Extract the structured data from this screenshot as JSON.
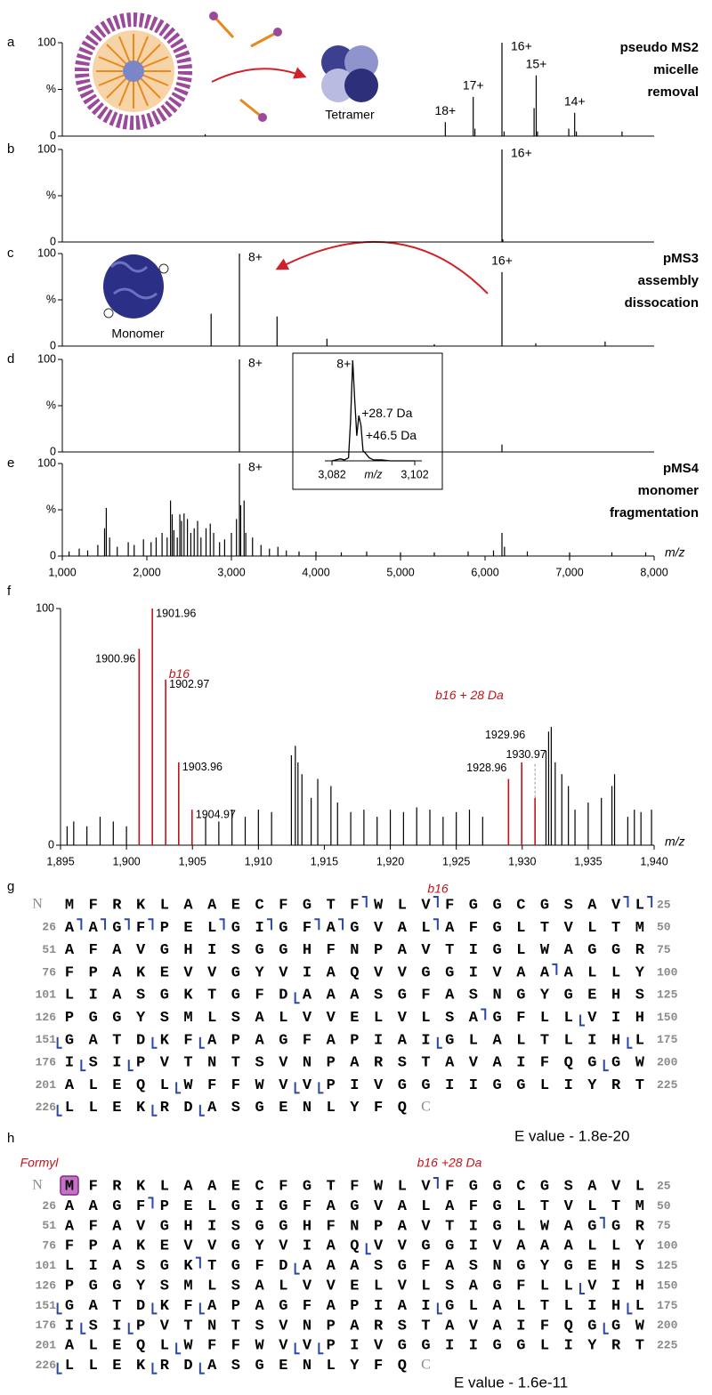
{
  "chart_data": [
    {
      "type": "spectrum",
      "panel": "a",
      "xlim": [
        1000,
        8000
      ],
      "ylim": [
        0,
        100
      ],
      "yticks": [
        0,
        {
          "value": 50,
          "label": "%"
        },
        100
      ],
      "color": "#000000",
      "x": [
        2690,
        5530,
        5860,
        5880,
        6200,
        6225,
        6580,
        6605,
        6620,
        6990,
        7060,
        7080,
        7620
      ],
      "values": [
        2,
        15,
        42,
        8,
        100,
        5,
        30,
        65,
        5,
        8,
        25,
        5,
        5
      ],
      "annotations": [
        {
          "text": "18+",
          "x": 5530,
          "y": 15
        },
        {
          "text": "17+",
          "x": 5860,
          "y": 42
        },
        {
          "text": "16+",
          "x": 6200,
          "y": 100
        },
        {
          "text": "15+",
          "x": 6605,
          "y": 65
        },
        {
          "text": "14+",
          "x": 7060,
          "y": 25
        }
      ],
      "title_lines": [
        "pseudo MS2",
        "micelle",
        "removal"
      ],
      "image_label": "Tetramer"
    },
    {
      "type": "spectrum",
      "panel": "b",
      "xlim": [
        1000,
        8000
      ],
      "ylim": [
        0,
        100
      ],
      "yticks": [
        0,
        {
          "value": 50,
          "label": "%"
        },
        100
      ],
      "color": "#000000",
      "x": [
        6200,
        6210
      ],
      "values": [
        100,
        3
      ],
      "annotations": [
        {
          "text": "16+",
          "x": 6200,
          "y": 100
        }
      ]
    },
    {
      "type": "spectrum",
      "panel": "c",
      "xlim": [
        1000,
        8000
      ],
      "ylim": [
        0,
        100
      ],
      "yticks": [
        0,
        {
          "value": 50,
          "label": "%"
        },
        100
      ],
      "color": "#000000",
      "x": [
        2760,
        3095,
        3540,
        4130,
        5400,
        6200,
        6600,
        7420
      ],
      "values": [
        35,
        100,
        32,
        8,
        2,
        80,
        3,
        5
      ],
      "annotations": [
        {
          "text": "8+",
          "x": 3095,
          "y": 100
        },
        {
          "text": "16+",
          "x": 6200,
          "y": 80
        }
      ],
      "title_lines": [
        "pMS3",
        "assembly",
        "dissocation"
      ],
      "image_label": "Monomer"
    },
    {
      "type": "spectrum",
      "panel": "d",
      "xlim": [
        1000,
        8000
      ],
      "ylim": [
        0,
        100
      ],
      "yticks": [
        0,
        {
          "value": 50,
          "label": "%"
        },
        100
      ],
      "color": "#000000",
      "x": [
        3095,
        6200
      ],
      "values": [
        100,
        8
      ],
      "annotations": [
        {
          "text": "8+",
          "x": 3095,
          "y": 100
        }
      ]
    },
    {
      "type": "spectrum",
      "panel": "e",
      "xlim": [
        1000,
        8000
      ],
      "ylim": [
        0,
        100
      ],
      "yticks": [
        0,
        {
          "value": 50,
          "label": "%"
        },
        100
      ],
      "color": "#000000",
      "xticks": [
        {
          "value": 1000,
          "label": "1,000"
        },
        {
          "value": 2000,
          "label": "2,000"
        },
        {
          "value": 3000,
          "label": "3,000"
        },
        {
          "value": 4000,
          "label": "4,000"
        },
        {
          "value": 5000,
          "label": "5,000"
        },
        {
          "value": 6000,
          "label": "6,000"
        },
        {
          "value": 7000,
          "label": "7,000"
        },
        {
          "value": 8000,
          "label": "8,000"
        }
      ],
      "xlabel": "m/z",
      "x": [
        1080,
        1200,
        1300,
        1420,
        1500,
        1520,
        1560,
        1650,
        1780,
        1850,
        1960,
        2050,
        2110,
        2180,
        2240,
        2280,
        2300,
        2320,
        2360,
        2390,
        2410,
        2440,
        2480,
        2520,
        2560,
        2600,
        2640,
        2700,
        2750,
        2790,
        2860,
        2920,
        3000,
        3060,
        3095,
        3110,
        3150,
        3170,
        3250,
        3350,
        3450,
        3550,
        3650,
        3800,
        4000,
        4300,
        4600,
        5000,
        5400,
        5800,
        6100,
        6200,
        6230,
        6500,
        7000,
        7500,
        7900
      ],
      "values": [
        5,
        8,
        6,
        12,
        30,
        52,
        20,
        10,
        15,
        12,
        18,
        15,
        20,
        25,
        20,
        60,
        45,
        28,
        20,
        45,
        38,
        46,
        40,
        25,
        30,
        38,
        20,
        30,
        35,
        25,
        15,
        18,
        25,
        40,
        100,
        55,
        60,
        25,
        20,
        12,
        8,
        10,
        6,
        5,
        5,
        4,
        5,
        4,
        4,
        5,
        6,
        25,
        10,
        5,
        4,
        4,
        4
      ],
      "annotations": [
        {
          "text": "8+",
          "x": 3095,
          "y": 100
        }
      ],
      "title_lines": [
        "pMS4",
        "monomer",
        "fragmentation"
      ]
    },
    {
      "type": "line",
      "xlim": [
        3082,
        3102
      ],
      "ylim": [
        0,
        100
      ],
      "color": "#000000",
      "xticks": [
        {
          "value": 3082,
          "label": "3,082"
        },
        {
          "value": 3102,
          "label": "3,102"
        }
      ],
      "xlabel": "m/z",
      "x": [
        3082,
        3083,
        3084,
        3085,
        3086,
        3086.5,
        3087,
        3087.5,
        3088,
        3088.5,
        3089,
        3089.5,
        3090,
        3091,
        3092,
        3094,
        3096,
        3100,
        3102
      ],
      "values": [
        0,
        1,
        2,
        1,
        3,
        40,
        100,
        60,
        25,
        45,
        35,
        10,
        8,
        3,
        1,
        1,
        0,
        0,
        0
      ],
      "annotations": [
        {
          "text": "8+",
          "x": 3087,
          "y": 100
        },
        {
          "text": "+28.7 Da",
          "x": 3088.5,
          "y": 45
        },
        {
          "text": "+46.5 Da",
          "x": 3089.5,
          "y": 35
        }
      ]
    },
    {
      "type": "spectrum",
      "panel": "f",
      "xlim": [
        1895,
        1940
      ],
      "ylim": [
        0,
        100
      ],
      "yticks": [
        0,
        100
      ],
      "color": "#000000",
      "xticks": [
        {
          "value": 1895,
          "label": "1,895"
        },
        {
          "value": 1900,
          "label": "1,900"
        },
        {
          "value": 1905,
          "label": "1,905"
        },
        {
          "value": 1910,
          "label": "1,910"
        },
        {
          "value": 1915,
          "label": "1,915"
        },
        {
          "value": 1920,
          "label": "1,920"
        },
        {
          "value": 1925,
          "label": "1,925"
        },
        {
          "value": 1930,
          "label": "1,930"
        },
        {
          "value": 1935,
          "label": "1,935"
        },
        {
          "value": 1940,
          "label": "1,940"
        }
      ],
      "xlabel": "m/z",
      "x": [
        1895.5,
        1896,
        1897,
        1898,
        1899,
        1900,
        1906,
        1907,
        1908,
        1909,
        1910,
        1911,
        1912.5,
        1912.8,
        1913,
        1913.3,
        1914,
        1914.5,
        1915.5,
        1916,
        1917,
        1918,
        1919,
        1920,
        1921,
        1922,
        1923,
        1924,
        1925,
        1926,
        1927,
        1931.8,
        1932,
        1932.2,
        1932.5,
        1933,
        1933.5,
        1934,
        1935,
        1936,
        1936.8,
        1937,
        1938,
        1938.5,
        1939,
        1939.8
      ],
      "values": [
        8,
        10,
        8,
        12,
        10,
        8,
        12,
        10,
        15,
        12,
        15,
        14,
        38,
        42,
        35,
        30,
        20,
        28,
        25,
        18,
        14,
        15,
        12,
        15,
        14,
        16,
        15,
        12,
        14,
        15,
        12,
        40,
        48,
        50,
        35,
        30,
        25,
        15,
        18,
        20,
        25,
        30,
        12,
        15,
        14,
        15
      ],
      "matched_peaks": {
        "color": "#c0141c",
        "x": [
          1900.96,
          1901.96,
          1902.97,
          1903.96,
          1904.97,
          1928.96,
          1929.96,
          1930.97
        ],
        "values": [
          83,
          100,
          70,
          35,
          15,
          28,
          35,
          20
        ]
      },
      "annotations": [
        {
          "text": "b16",
          "x": 1904,
          "y": 72
        },
        {
          "text": "b16 + 28 Da",
          "x": 1926,
          "y": 63
        }
      ]
    }
  ],
  "sequence_maps": [
    {
      "panel": "g",
      "annotation": "b16",
      "n_term": "N",
      "c_term": "C",
      "sequence_rows": [
        "MFRKLAAECFGTFWLVFGGCGSAVL",
        "AAGFPELGIGFAGVALAFGLTVLTM",
        "AFAVGHISGGHFNPAVTIGLWAGGR",
        "FPAKEVVGYVIAQVVGGIVAAALLY",
        "LIASGKTGFDAAASGFASNGYGEHS",
        "PGGYSMLSALVVELVLSAGFLLVIH",
        "GATDKFAPAGFAPIAIGLALTLIHL",
        "ISIPVTNTSVNPARSTAVAIFQGGW",
        "ALEQLWFFWVVPIVGGIIGGLIYRT",
        "LLEKRDASGENLYFQ"
      ],
      "row_starts": [
        26,
        51,
        76,
        101,
        126,
        151,
        176,
        201,
        226
      ],
      "row_ends": [
        25,
        50,
        75,
        100,
        125,
        150,
        175,
        200,
        225
      ],
      "b_sites": [
        13,
        16,
        24,
        25,
        26,
        27,
        28,
        29,
        32,
        34,
        36,
        37,
        41,
        96,
        143
      ],
      "y_sites": [
        111,
        148,
        151,
        155,
        157,
        167,
        175,
        177,
        179,
        199,
        206,
        211,
        212,
        226,
        230,
        232
      ],
      "e_value": "E value - 1.8e-20"
    },
    {
      "panel": "h",
      "annotation": "b16 +28 Da",
      "n_term": "N",
      "c_term": "C",
      "modification": {
        "label": "Formyl",
        "residue": 1
      },
      "sequence_rows": [
        "MFRKLAAECFGTFWLVFGGCGSAVL",
        "AAGFPELGIGFAGVALAFGLTVLTM",
        "AFAVGHISGGHFNPAVTIGLWAGGR",
        "FPAKEVVGYVIAQVVGGIVAAALLY",
        "LIASGKTGFDAAASGFASNGYGEHS",
        "PGGYSMLSALVVELVLSAGFLLVIH",
        "GATDKFAPAGFAPIAIGLALTLIHL",
        "ISIPVTNTSVNPARSTAVAIFQGGW",
        "ALEQLWFFWVVPIVGGIIGGLIYRT",
        "LLEKRDASGENLYFQ"
      ],
      "row_starts": [
        26,
        51,
        76,
        101,
        126,
        151,
        176,
        201,
        226
      ],
      "row_ends": [
        25,
        50,
        75,
        100,
        125,
        150,
        175,
        200,
        225
      ],
      "b_sites": [
        16,
        29,
        73,
        106
      ],
      "y_sites": [
        89,
        111,
        148,
        151,
        155,
        157,
        167,
        175,
        177,
        179,
        199,
        206,
        211,
        212,
        226,
        230,
        232
      ],
      "e_value": "E value - 1.6e-11"
    }
  ]
}
